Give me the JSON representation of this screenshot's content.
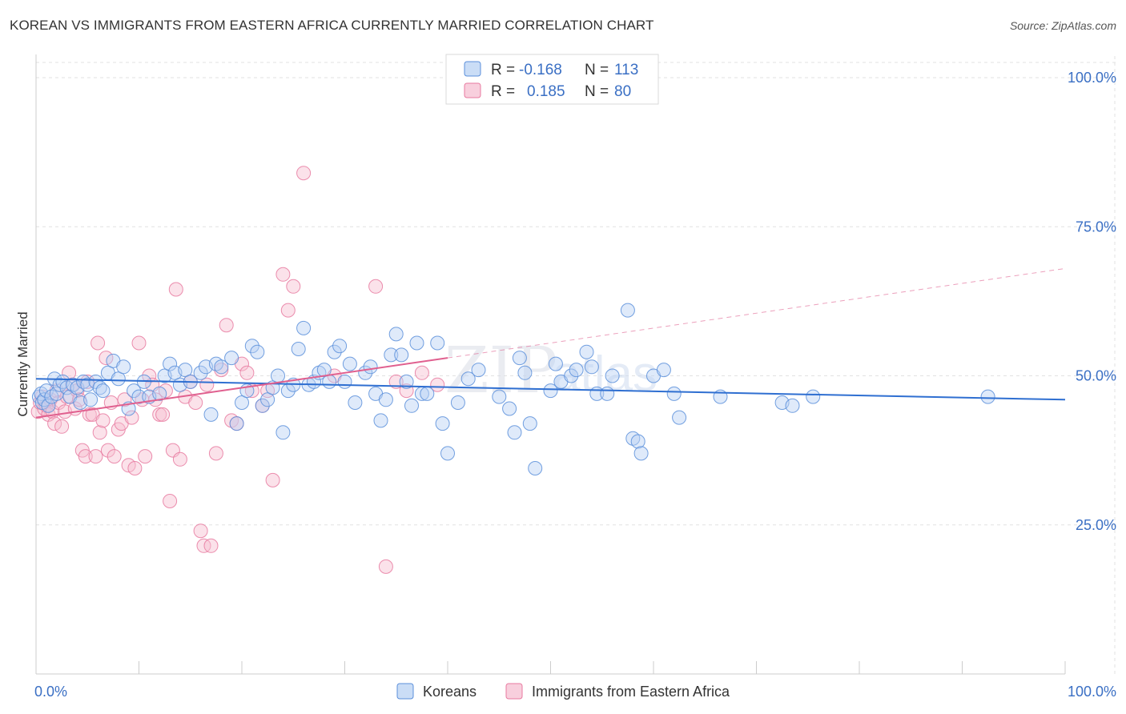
{
  "title": "KOREAN VS IMMIGRANTS FROM EASTERN AFRICA CURRENTLY MARRIED CORRELATION CHART",
  "source": "Source: ZipAtlas.com",
  "watermark": {
    "zip": "ZIP",
    "atlas": "atlas"
  },
  "colors": {
    "blue": "#5b8fdb",
    "blue_fill": "#b8d1f3",
    "pink": "#e87aa0",
    "pink_fill": "#f6bfd1",
    "blue_line": "#2f6fd1",
    "pink_line": "#e0608f",
    "grid": "#e2e2e2",
    "axis_label": "#3a6fc4"
  },
  "legend": {
    "rows": [
      {
        "r_label": "R = ",
        "r_value": "-0.168",
        "n_label": "N = ",
        "n_value": "113"
      },
      {
        "r_label": "R = ",
        "r_value": "0.185",
        "n_label": "N = ",
        "n_value": "80"
      }
    ]
  },
  "chart_data": {
    "type": "scatter",
    "title": "KOREAN VS IMMIGRANTS FROM EASTERN AFRICA CURRENTLY MARRIED CORRELATION CHART",
    "ylabel": "Currently Married",
    "xlim": [
      0,
      100
    ],
    "ylim": [
      0,
      100
    ],
    "x_tick_labels": [
      "0.0%",
      "100.0%"
    ],
    "y_ticks": [
      25,
      50,
      75,
      100
    ],
    "y_tick_labels": [
      "25.0%",
      "50.0%",
      "75.0%",
      "100.0%"
    ],
    "grid": true,
    "legend_position": "top-center",
    "series": [
      {
        "name": "Koreans",
        "r": -0.168,
        "n": 113,
        "trend": {
          "x0": 0,
          "y0": 49.5,
          "x1": 100,
          "y1": 46.0
        },
        "points": [
          [
            0.3,
            46.5
          ],
          [
            0.5,
            47.0
          ],
          [
            0.6,
            45.5
          ],
          [
            0.8,
            46.0
          ],
          [
            1.0,
            47.5
          ],
          [
            1.2,
            45.0
          ],
          [
            1.5,
            46.5
          ],
          [
            1.8,
            49.5
          ],
          [
            2.0,
            47.0
          ],
          [
            2.3,
            48.5
          ],
          [
            2.6,
            49.0
          ],
          [
            3.0,
            48.0
          ],
          [
            3.3,
            46.5
          ],
          [
            3.6,
            48.5
          ],
          [
            4.0,
            48.0
          ],
          [
            4.3,
            45.5
          ],
          [
            4.6,
            49.0
          ],
          [
            5.0,
            48.5
          ],
          [
            5.3,
            46.0
          ],
          [
            5.8,
            49.0
          ],
          [
            6.2,
            48.0
          ],
          [
            6.5,
            47.5
          ],
          [
            7.0,
            50.5
          ],
          [
            7.5,
            52.5
          ],
          [
            8.0,
            49.5
          ],
          [
            8.5,
            51.5
          ],
          [
            9.0,
            44.5
          ],
          [
            9.5,
            47.5
          ],
          [
            10.0,
            46.5
          ],
          [
            10.5,
            49.0
          ],
          [
            11.0,
            46.5
          ],
          [
            12.0,
            47.0
          ],
          [
            12.5,
            50.0
          ],
          [
            13.0,
            52.0
          ],
          [
            13.5,
            50.5
          ],
          [
            14.0,
            48.5
          ],
          [
            14.5,
            51.0
          ],
          [
            15.0,
            49.0
          ],
          [
            16.0,
            50.5
          ],
          [
            16.5,
            51.5
          ],
          [
            17.0,
            43.5
          ],
          [
            17.5,
            52.0
          ],
          [
            18.0,
            51.5
          ],
          [
            19.0,
            53.0
          ],
          [
            19.5,
            42.0
          ],
          [
            20.0,
            45.5
          ],
          [
            20.5,
            47.5
          ],
          [
            21.0,
            55.0
          ],
          [
            21.5,
            54.0
          ],
          [
            22.0,
            45.0
          ],
          [
            22.5,
            46.0
          ],
          [
            23.0,
            48.0
          ],
          [
            23.5,
            50.0
          ],
          [
            24.0,
            40.5
          ],
          [
            24.5,
            47.5
          ],
          [
            25.0,
            48.5
          ],
          [
            25.5,
            54.5
          ],
          [
            26.0,
            58.0
          ],
          [
            26.5,
            48.5
          ],
          [
            27.0,
            49.0
          ],
          [
            27.5,
            50.5
          ],
          [
            28.0,
            51.0
          ],
          [
            28.5,
            49.0
          ],
          [
            29.0,
            54.0
          ],
          [
            29.5,
            55.0
          ],
          [
            30.0,
            49.0
          ],
          [
            30.5,
            52.0
          ],
          [
            31.0,
            45.5
          ],
          [
            32.0,
            50.5
          ],
          [
            32.5,
            51.5
          ],
          [
            33.0,
            47.0
          ],
          [
            33.5,
            42.5
          ],
          [
            34.0,
            46.0
          ],
          [
            34.5,
            53.5
          ],
          [
            35.0,
            57.0
          ],
          [
            35.5,
            53.5
          ],
          [
            36.0,
            49.0
          ],
          [
            36.5,
            45.0
          ],
          [
            37.0,
            55.5
          ],
          [
            37.5,
            47.0
          ],
          [
            38.0,
            47.0
          ],
          [
            39.0,
            55.5
          ],
          [
            39.5,
            42.0
          ],
          [
            40.0,
            37.0
          ],
          [
            41.0,
            45.5
          ],
          [
            42.0,
            49.5
          ],
          [
            43.0,
            51.0
          ],
          [
            45.0,
            46.5
          ],
          [
            46.0,
            44.5
          ],
          [
            46.5,
            40.5
          ],
          [
            47.0,
            53.0
          ],
          [
            47.5,
            50.5
          ],
          [
            48.0,
            42.0
          ],
          [
            48.5,
            34.5
          ],
          [
            50.0,
            47.5
          ],
          [
            50.5,
            52.0
          ],
          [
            51.0,
            49.0
          ],
          [
            52.0,
            50.0
          ],
          [
            52.5,
            51.0
          ],
          [
            53.5,
            54.0
          ],
          [
            54.0,
            51.5
          ],
          [
            54.5,
            47.0
          ],
          [
            55.5,
            47.0
          ],
          [
            56.0,
            50.0
          ],
          [
            57.5,
            61.0
          ],
          [
            58.0,
            39.5
          ],
          [
            58.5,
            39.0
          ],
          [
            58.8,
            37.0
          ],
          [
            60.0,
            50.0
          ],
          [
            61.0,
            51.0
          ],
          [
            62.0,
            47.0
          ],
          [
            62.5,
            43.0
          ],
          [
            66.5,
            46.5
          ],
          [
            72.5,
            45.5
          ],
          [
            73.5,
            45.0
          ],
          [
            75.5,
            46.5
          ],
          [
            92.5,
            46.5
          ]
        ]
      },
      {
        "name": "Immigrants from Eastern Africa",
        "r": 0.185,
        "n": 80,
        "trend": {
          "x0": 0,
          "y0": 43.0,
          "x1": 40,
          "y1": 53.0
        },
        "trend_dashed": {
          "x0": 40,
          "y0": 53.0,
          "x1": 100,
          "y1": 68.0
        },
        "points": [
          [
            0.2,
            44.0
          ],
          [
            0.4,
            45.5
          ],
          [
            0.6,
            46.5
          ],
          [
            0.8,
            44.5
          ],
          [
            1.0,
            45.0
          ],
          [
            1.2,
            43.5
          ],
          [
            1.4,
            46.0
          ],
          [
            1.6,
            44.0
          ],
          [
            1.8,
            42.0
          ],
          [
            2.0,
            47.5
          ],
          [
            2.2,
            45.5
          ],
          [
            2.5,
            41.5
          ],
          [
            2.8,
            44.0
          ],
          [
            3.0,
            46.5
          ],
          [
            3.2,
            50.5
          ],
          [
            3.5,
            48.5
          ],
          [
            3.8,
            44.5
          ],
          [
            4.0,
            47.5
          ],
          [
            4.2,
            46.0
          ],
          [
            4.5,
            37.5
          ],
          [
            4.8,
            36.5
          ],
          [
            5.0,
            49.0
          ],
          [
            5.2,
            43.5
          ],
          [
            5.5,
            43.5
          ],
          [
            5.8,
            36.5
          ],
          [
            6.0,
            55.5
          ],
          [
            6.2,
            40.5
          ],
          [
            6.5,
            42.5
          ],
          [
            6.8,
            53.0
          ],
          [
            7.0,
            37.5
          ],
          [
            7.3,
            45.5
          ],
          [
            7.6,
            36.5
          ],
          [
            8.0,
            41.0
          ],
          [
            8.3,
            42.0
          ],
          [
            8.6,
            46.0
          ],
          [
            9.0,
            35.0
          ],
          [
            9.3,
            43.0
          ],
          [
            9.6,
            34.5
          ],
          [
            10.0,
            55.5
          ],
          [
            10.3,
            46.0
          ],
          [
            10.6,
            36.5
          ],
          [
            11.0,
            50.0
          ],
          [
            11.3,
            48.5
          ],
          [
            11.6,
            46.0
          ],
          [
            12.0,
            43.5
          ],
          [
            12.3,
            43.5
          ],
          [
            12.6,
            47.5
          ],
          [
            13.0,
            29.0
          ],
          [
            13.3,
            37.5
          ],
          [
            13.6,
            64.5
          ],
          [
            14.0,
            36.0
          ],
          [
            14.5,
            46.5
          ],
          [
            15.0,
            49.0
          ],
          [
            15.5,
            45.5
          ],
          [
            16.0,
            24.0
          ],
          [
            16.3,
            21.5
          ],
          [
            16.6,
            48.5
          ],
          [
            17.0,
            21.5
          ],
          [
            17.5,
            37.0
          ],
          [
            18.0,
            51.0
          ],
          [
            18.5,
            58.5
          ],
          [
            19.0,
            42.5
          ],
          [
            19.5,
            42.0
          ],
          [
            20.0,
            52.0
          ],
          [
            20.5,
            50.5
          ],
          [
            21.0,
            47.5
          ],
          [
            22.0,
            45.0
          ],
          [
            22.5,
            47.5
          ],
          [
            23.0,
            32.5
          ],
          [
            24.0,
            67.0
          ],
          [
            24.5,
            61.0
          ],
          [
            25.0,
            65.0
          ],
          [
            26.0,
            84.0
          ],
          [
            29.0,
            50.0
          ],
          [
            33.0,
            65.0
          ],
          [
            34.0,
            18.0
          ],
          [
            35.0,
            49.0
          ],
          [
            36.0,
            47.5
          ],
          [
            37.5,
            50.5
          ],
          [
            39.0,
            48.5
          ]
        ]
      }
    ]
  }
}
